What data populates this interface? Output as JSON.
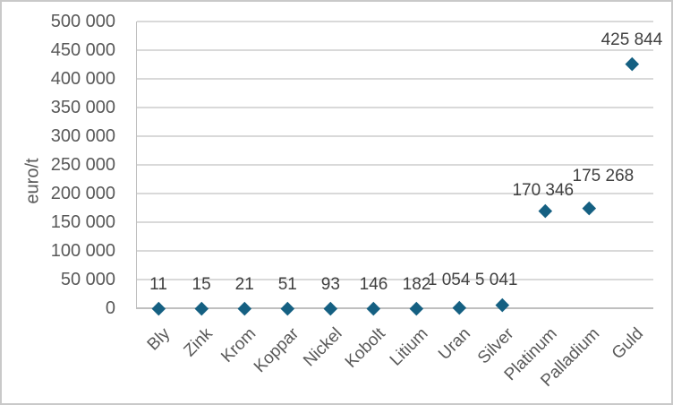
{
  "chart_data": {
    "type": "scatter",
    "title": "",
    "ylabel": "euro/t",
    "xlabel": "",
    "categories": [
      "Bly",
      "Zink",
      "Krom",
      "Koppar",
      "Nickel",
      "Kobolt",
      "Litium",
      "Uran",
      "Silver",
      "Platinum",
      "Palladium",
      "Guld"
    ],
    "values": [
      11,
      15,
      21,
      51,
      93,
      146,
      182,
      1054,
      5041,
      170346,
      175268,
      425844
    ],
    "point_labels": [
      "11",
      "15",
      "21",
      "51",
      "93",
      "146",
      "182",
      "1 054",
      "5 041",
      "170 346",
      "175 268",
      "425 844"
    ],
    "yticks": [
      "0",
      "50 000",
      "100 000",
      "150 000",
      "200 000",
      "250 000",
      "300 000",
      "350 000",
      "400 000",
      "450 000",
      "500 000"
    ],
    "ylim": [
      0,
      500000
    ],
    "ytick_step": 50000,
    "grid": true,
    "legend": "none",
    "marker": "diamond",
    "category_label_rotation_deg": -45,
    "label_adjust": {
      "dx": [
        0,
        0,
        0,
        0,
        0,
        0,
        0,
        -12,
        -7,
        -3,
        16,
        0
      ],
      "dy": [
        0,
        0,
        0,
        0,
        0,
        0,
        0,
        -4,
        -2,
        4,
        -9,
        0
      ]
    },
    "colors": {
      "marker": "#156082",
      "gridline": "#d9d9d9",
      "axis_line": "#bfbfbf",
      "tick_text": "#595959",
      "data_label_text": "#404040",
      "frame_border": "#c9c9c9",
      "background": "#ffffff"
    }
  }
}
